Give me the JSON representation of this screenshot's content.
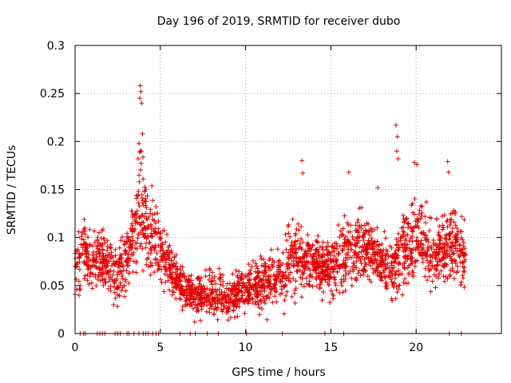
{
  "chart_data": {
    "type": "scatter",
    "title": "Day 196 of 2019, SRMTID for receiver dubo",
    "xlabel": "GPS time / hours",
    "ylabel": "SRMTID / TECUs",
    "xlim": [
      0,
      25
    ],
    "ylim": [
      0,
      0.3
    ],
    "x_ticks": [
      0,
      5,
      10,
      15,
      20
    ],
    "x_tick_labels": [
      "0",
      "5",
      "10",
      "15",
      "20"
    ],
    "y_ticks": [
      0,
      0.05,
      0.1,
      0.15,
      0.2,
      0.25,
      0.3
    ],
    "y_tick_labels": [
      "0",
      "0.05",
      "0.1",
      "0.15",
      "0.2",
      "0.25",
      "0.3"
    ],
    "grid": true,
    "marker": "plus",
    "series": [
      {
        "name": "SRMTID",
        "color": "#e00000",
        "profile": {
          "x": [
            0.0,
            0.5,
            1.0,
            1.5,
            2.0,
            2.5,
            3.0,
            3.5,
            3.8,
            4.2,
            4.6,
            5.0,
            5.5,
            6.0,
            6.5,
            7.0,
            7.5,
            8.0,
            8.5,
            9.0,
            9.5,
            10.0,
            10.5,
            11.0,
            11.5,
            12.0,
            12.5,
            13.0,
            13.5,
            14.0,
            14.5,
            15.0,
            15.5,
            16.0,
            16.5,
            17.0,
            17.5,
            18.0,
            18.5,
            19.0,
            19.5,
            20.0,
            20.5,
            21.0,
            21.5,
            22.0,
            22.5,
            22.9
          ],
          "y": [
            0.07,
            0.085,
            0.075,
            0.08,
            0.07,
            0.06,
            0.08,
            0.1,
            0.14,
            0.12,
            0.1,
            0.085,
            0.07,
            0.055,
            0.045,
            0.04,
            0.04,
            0.042,
            0.04,
            0.038,
            0.042,
            0.045,
            0.05,
            0.055,
            0.055,
            0.06,
            0.07,
            0.08,
            0.075,
            0.07,
            0.07,
            0.065,
            0.075,
            0.085,
            0.09,
            0.09,
            0.08,
            0.07,
            0.065,
            0.08,
            0.09,
            0.1,
            0.09,
            0.08,
            0.085,
            0.09,
            0.09,
            0.08
          ],
          "spread": [
            0.02,
            0.03,
            0.025,
            0.025,
            0.03,
            0.025,
            0.03,
            0.035,
            0.06,
            0.04,
            0.03,
            0.025,
            0.022,
            0.02,
            0.02,
            0.018,
            0.018,
            0.02,
            0.02,
            0.018,
            0.02,
            0.02,
            0.022,
            0.022,
            0.025,
            0.025,
            0.03,
            0.035,
            0.03,
            0.025,
            0.025,
            0.025,
            0.03,
            0.03,
            0.03,
            0.028,
            0.025,
            0.025,
            0.03,
            0.035,
            0.035,
            0.035,
            0.03,
            0.03,
            0.03,
            0.03,
            0.03,
            0.025
          ],
          "points_per_hour": 105
        },
        "outliers": [
          {
            "x": 3.82,
            "y": 0.258
          },
          {
            "x": 3.86,
            "y": 0.252
          },
          {
            "x": 3.8,
            "y": 0.245
          },
          {
            "x": 3.9,
            "y": 0.24
          },
          {
            "x": 3.95,
            "y": 0.208
          },
          {
            "x": 3.75,
            "y": 0.198
          },
          {
            "x": 3.88,
            "y": 0.19
          },
          {
            "x": 3.7,
            "y": 0.182
          },
          {
            "x": 18.82,
            "y": 0.217
          },
          {
            "x": 18.9,
            "y": 0.205
          },
          {
            "x": 18.86,
            "y": 0.19
          },
          {
            "x": 18.95,
            "y": 0.182
          },
          {
            "x": 19.9,
            "y": 0.178
          },
          {
            "x": 20.05,
            "y": 0.176
          },
          {
            "x": 21.85,
            "y": 0.179
          },
          {
            "x": 21.9,
            "y": 0.168
          },
          {
            "x": 13.3,
            "y": 0.18
          },
          {
            "x": 13.35,
            "y": 0.167
          },
          {
            "x": 16.05,
            "y": 0.168
          },
          {
            "x": 17.75,
            "y": 0.152
          }
        ],
        "zero_x": [
          0.3,
          0.5,
          0.6,
          1.3,
          1.45,
          1.6,
          1.75,
          2.35,
          2.5,
          2.65,
          3.05,
          3.15,
          3.45,
          3.75,
          4.0,
          4.15,
          4.3,
          4.55,
          4.75,
          4.9,
          6.15,
          6.75,
          7.05,
          7.75,
          8.4,
          10.05,
          12.15,
          14.65,
          15.75,
          21.95,
          22.65
        ]
      }
    ]
  }
}
